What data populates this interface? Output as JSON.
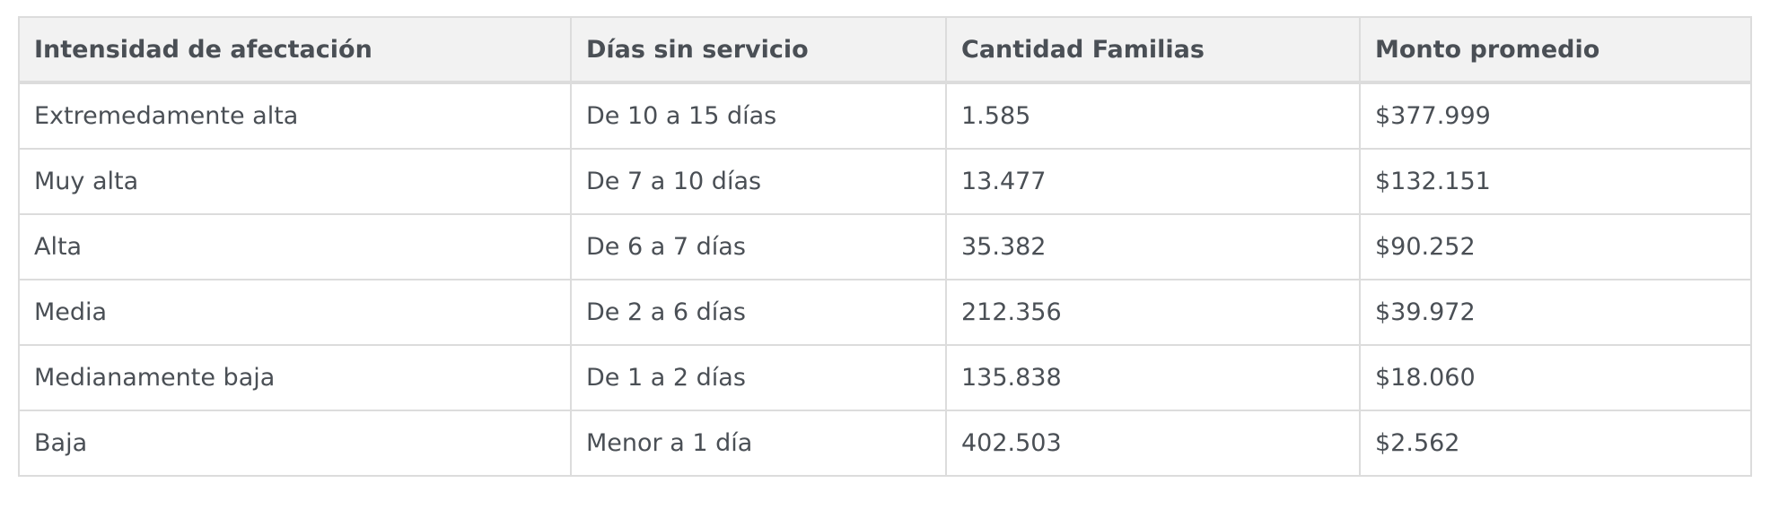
{
  "table": {
    "headers": [
      "Intensidad de afectación",
      "Días sin servicio",
      "Cantidad Familias",
      "Monto promedio"
    ],
    "rows": [
      [
        "Extremedamente alta",
        "De 10 a 15 días",
        "1.585",
        "$377.999"
      ],
      [
        "Muy alta",
        "De 7 a 10 días",
        "13.477",
        "$132.151"
      ],
      [
        "Alta",
        "De 6 a 7 días",
        "35.382",
        "$90.252"
      ],
      [
        "Media",
        "De 2 a 6 días",
        "212.356",
        "$39.972"
      ],
      [
        "Medianamente baja",
        "De 1 a 2 días",
        "135.838",
        "$18.060"
      ],
      [
        "Baja",
        "Menor a 1 día",
        "402.503",
        "$2.562"
      ]
    ]
  },
  "colors": {
    "header_background": "#f2f2f2",
    "border": "#dcdcdc",
    "text": "#4a4f55"
  }
}
